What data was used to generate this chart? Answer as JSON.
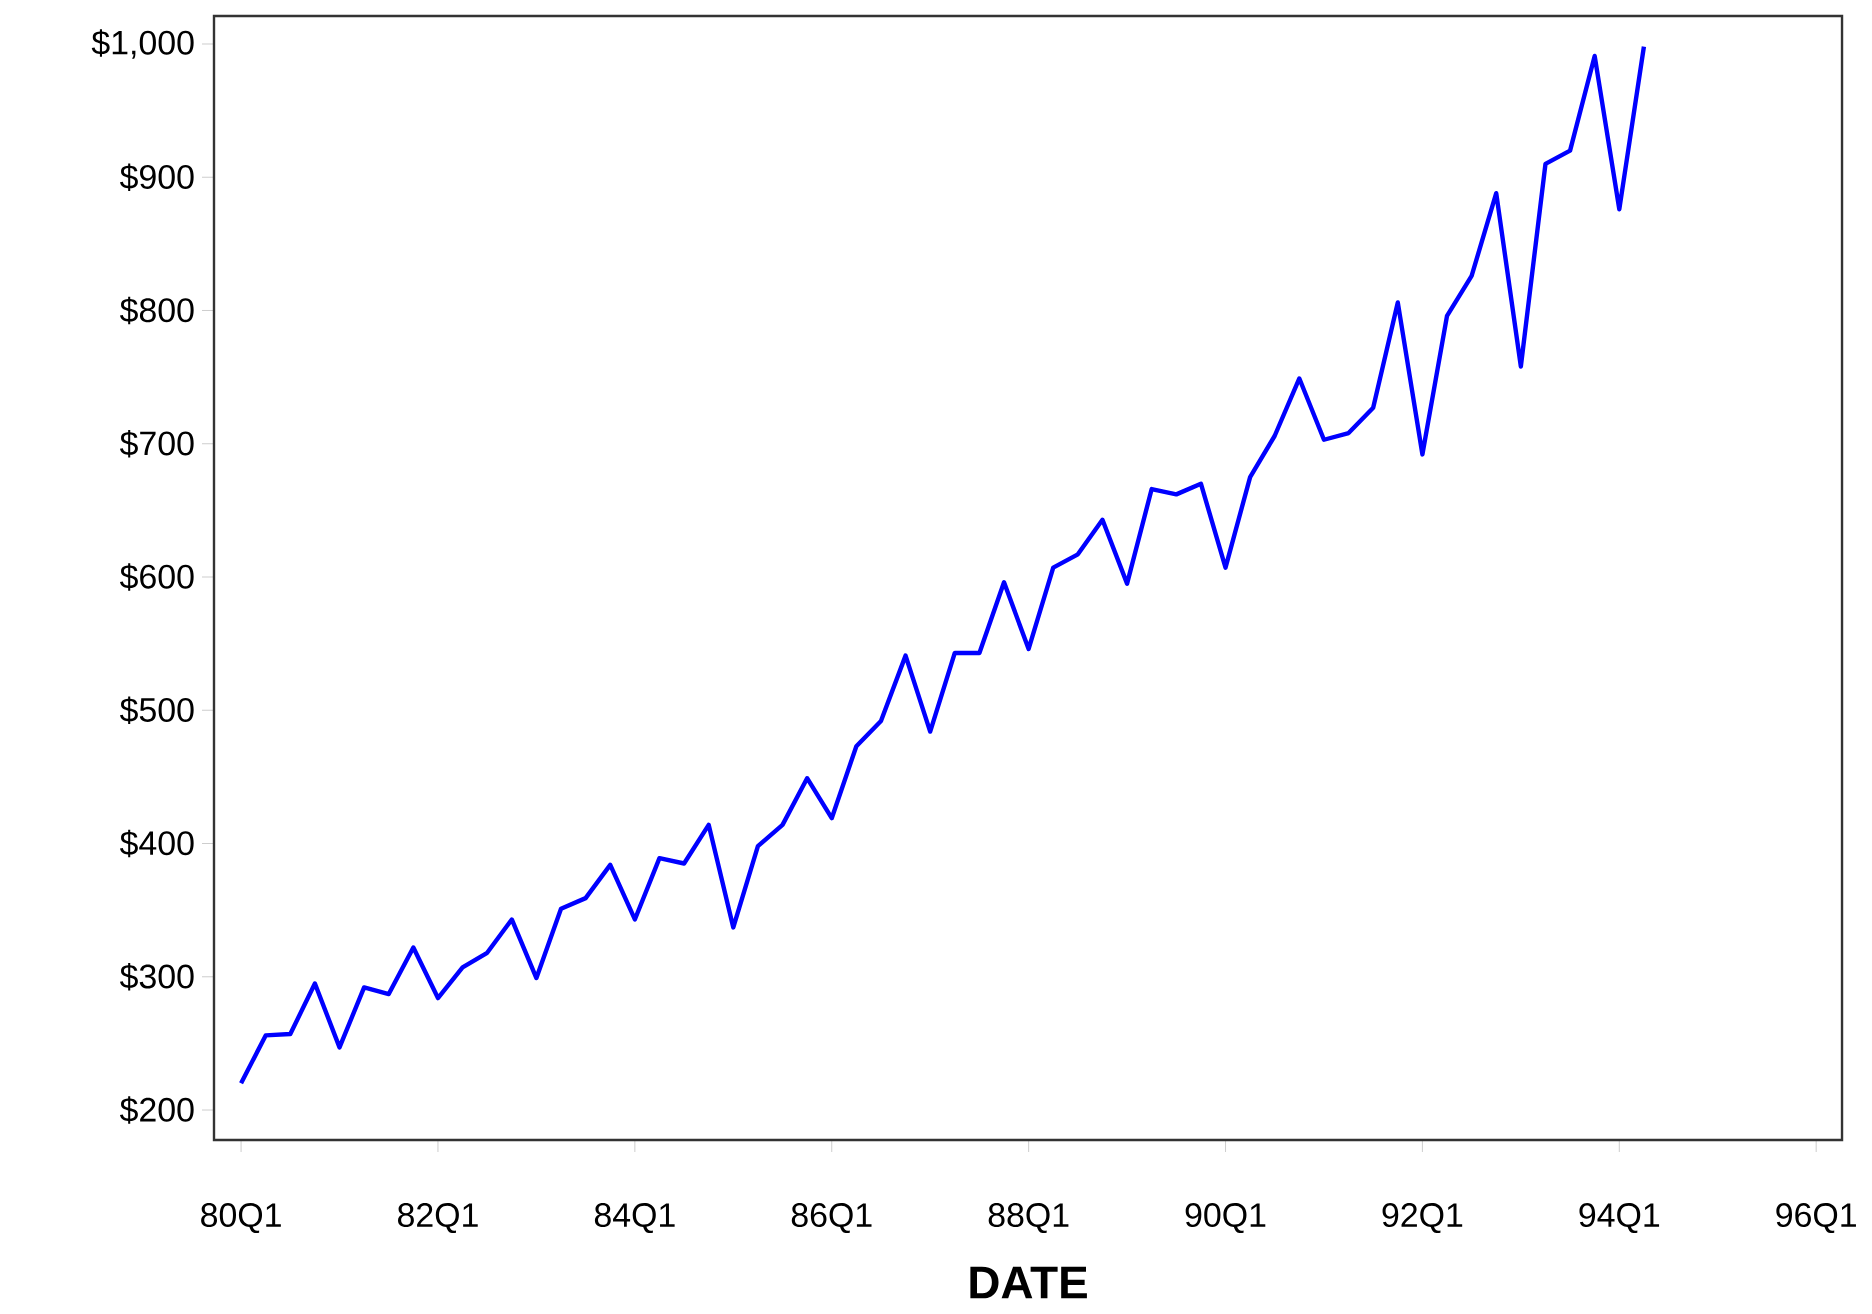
{
  "chart_data": {
    "type": "line",
    "xlabel": "DATE",
    "categories": [
      "80Q1",
      null,
      null,
      null,
      null,
      null,
      null,
      null,
      "82Q1",
      null,
      null,
      null,
      null,
      null,
      null,
      null,
      "84Q1",
      null,
      null,
      null,
      null,
      null,
      null,
      null,
      "86Q1",
      null,
      null,
      null,
      null,
      null,
      null,
      null,
      "88Q1",
      null,
      null,
      null,
      null,
      null,
      null,
      null,
      "90Q1",
      null,
      null,
      null,
      null,
      null,
      null,
      null,
      "92Q1",
      null,
      null,
      null,
      null,
      null,
      null,
      null,
      "94Q1",
      null,
      null,
      null,
      null,
      null,
      null,
      null,
      "96Q1"
    ],
    "series": [
      {
        "color": "#0000ff",
        "values": [
          220,
          256,
          257,
          295,
          247,
          292,
          287,
          322,
          284,
          307,
          318,
          343,
          299,
          351,
          359,
          384,
          343,
          389,
          385,
          414,
          337,
          398,
          414,
          449,
          419,
          473,
          492,
          541,
          484,
          543,
          543,
          596,
          546,
          607,
          617,
          643,
          595,
          666,
          662,
          670,
          607,
          675,
          706,
          749,
          703,
          708,
          727,
          806,
          692,
          796,
          826,
          888,
          758,
          910,
          920,
          991,
          876,
          998,
          null,
          null,
          null,
          null,
          null,
          null,
          null
        ]
      }
    ],
    "ylim": [
      177.5,
      1021
    ],
    "yticks": [
      {
        "value": 200,
        "label": "$200"
      },
      {
        "value": 300,
        "label": "$300"
      },
      {
        "value": 400,
        "label": "$400"
      },
      {
        "value": 500,
        "label": "$500"
      },
      {
        "value": 600,
        "label": "$600"
      },
      {
        "value": 700,
        "label": "$700"
      },
      {
        "value": 800,
        "label": "$800"
      },
      {
        "value": 900,
        "label": "$900"
      },
      {
        "value": 1000,
        "label": "$1,000"
      }
    ],
    "grid": false,
    "marker": "none",
    "line_style": "solid"
  }
}
